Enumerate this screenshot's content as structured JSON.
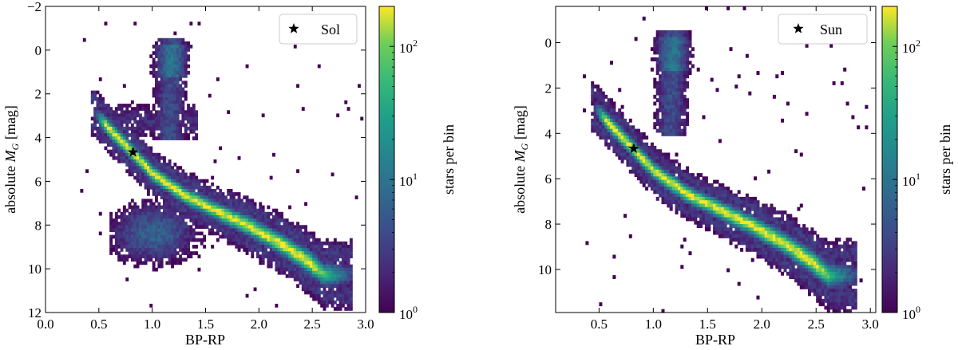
{
  "chart_data": [
    {
      "type": "heatmap",
      "title": "",
      "xlabel": "BP-RP",
      "ylabel_prefix": "absolute ",
      "ylabel_symbol": "M",
      "ylabel_subscript": "G",
      "ylabel_suffix": " [mag]",
      "xlim": [
        0.0,
        3.0
      ],
      "ylim": [
        12,
        -2
      ],
      "x_ticks": [
        0.0,
        0.5,
        1.0,
        1.5,
        2.0,
        2.5,
        3.0
      ],
      "x_tick_labels": [
        "0.0",
        "0.5",
        "1.0",
        "1.5",
        "2.0",
        "2.5",
        "3.0"
      ],
      "y_ticks": [
        -2,
        0,
        2,
        4,
        6,
        8,
        10,
        12
      ],
      "y_tick_labels": [
        "−2",
        "0",
        "2",
        "4",
        "6",
        "8",
        "10",
        "12"
      ],
      "colorbar": {
        "label": "stars per bin",
        "scale": "log",
        "range": [
          1,
          200
        ],
        "ticks": [
          1,
          10,
          100
        ],
        "tick_bases": [
          "10",
          "10",
          "10"
        ],
        "tick_exponents": [
          "0",
          "1",
          "2"
        ],
        "colormap": "viridis"
      },
      "legend": {
        "label": "Sol",
        "marker": "star",
        "position": "top-right"
      },
      "marker_point": {
        "x": 0.82,
        "y": 4.67
      },
      "main_sequence_track": [
        [
          0.45,
          2.8
        ],
        [
          0.6,
          3.6
        ],
        [
          0.82,
          4.7
        ],
        [
          1.0,
          5.6
        ],
        [
          1.3,
          6.6
        ],
        [
          1.6,
          7.3
        ],
        [
          1.9,
          8.0
        ],
        [
          2.2,
          8.8
        ],
        [
          2.45,
          9.6
        ],
        [
          2.6,
          10.2
        ]
      ],
      "giant_branch": [
        [
          1.1,
          3.5
        ],
        [
          1.15,
          2.0
        ],
        [
          1.2,
          0.8
        ],
        [
          1.25,
          0.0
        ]
      ],
      "white_dwarf_region": [
        [
          0.8,
          7.5
        ],
        [
          1.1,
          8.2
        ],
        [
          1.3,
          8.8
        ]
      ],
      "peak_count": 200
    },
    {
      "type": "heatmap",
      "title": "",
      "xlabel": "BP-RP",
      "ylabel_prefix": "absolute ",
      "ylabel_symbol": "M",
      "ylabel_subscript": "G",
      "ylabel_suffix": " [mag]",
      "xlim": [
        0.1,
        3.05
      ],
      "ylim": [
        11.9,
        -1.6
      ],
      "x_ticks": [
        0.5,
        1.0,
        1.5,
        2.0,
        2.5,
        3.0
      ],
      "x_tick_labels": [
        "0.5",
        "1.0",
        "1.5",
        "2.0",
        "2.5",
        "3.0"
      ],
      "y_ticks": [
        0,
        2,
        4,
        6,
        8,
        10
      ],
      "y_tick_labels": [
        "0",
        "2",
        "4",
        "6",
        "8",
        "10"
      ],
      "colorbar": {
        "label": "stars per bin",
        "scale": "log",
        "range": [
          1,
          200
        ],
        "ticks": [
          1,
          10,
          100
        ],
        "tick_bases": [
          "10",
          "10",
          "10"
        ],
        "tick_exponents": [
          "0",
          "1",
          "2"
        ],
        "colormap": "viridis"
      },
      "legend": {
        "label": "Sun",
        "marker": "star",
        "position": "top-right"
      },
      "marker_point": {
        "x": 0.82,
        "y": 4.67
      },
      "main_sequence_track": [
        [
          0.45,
          2.8
        ],
        [
          0.6,
          3.6
        ],
        [
          0.82,
          4.7
        ],
        [
          1.0,
          5.6
        ],
        [
          1.3,
          6.6
        ],
        [
          1.6,
          7.3
        ],
        [
          1.9,
          8.0
        ],
        [
          2.2,
          8.8
        ],
        [
          2.45,
          9.6
        ],
        [
          2.6,
          10.2
        ]
      ],
      "giant_branch": [
        [
          1.1,
          3.5
        ],
        [
          1.15,
          2.0
        ],
        [
          1.2,
          0.8
        ],
        [
          1.25,
          0.0
        ]
      ],
      "white_dwarf_region": [],
      "peak_count": 200
    }
  ]
}
